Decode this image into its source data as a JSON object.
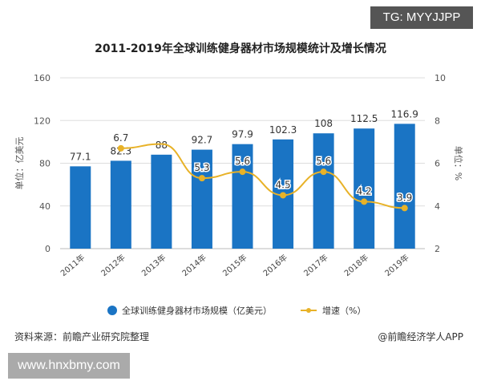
{
  "tag": "TG: MYYJJPP",
  "watermark": "www.hnxbmy.com",
  "source": "资料来源：前瞻产业研究院整理",
  "brand": "@前瞻经济学人APP",
  "chart_data": {
    "type": "bar+line",
    "title": "2011-2019年全球训练健身器材市场规模统计及增长情况",
    "categories": [
      "2011年",
      "2012年",
      "2013年",
      "2014年",
      "2015年",
      "2016年",
      "2017年",
      "2018年",
      "2019年"
    ],
    "series": [
      {
        "name": "全球训练健身器材市场规模（亿美元）",
        "type": "bar",
        "axis": "left",
        "color": "#1a74c4",
        "values": [
          77.1,
          82.3,
          88,
          92.7,
          97.9,
          102.3,
          108,
          112.5,
          116.9
        ],
        "labels": [
          "77.1",
          "82.3",
          "88",
          "92.7",
          "97.9",
          "102.3",
          "108",
          "112.5",
          "116.9"
        ]
      },
      {
        "name": "增速（%）",
        "type": "line",
        "axis": "right",
        "color": "#e8b228",
        "values": [
          null,
          6.7,
          6.9,
          5.3,
          5.6,
          4.5,
          5.6,
          4.2,
          3.9
        ],
        "labels": [
          "",
          "6.7",
          "",
          "5.3",
          "5.6",
          "4.5",
          "5.6",
          "4.2",
          "3.9"
        ]
      }
    ],
    "ylabel": "单位：亿美元",
    "y2label": "单位：%",
    "ylim": [
      0,
      160
    ],
    "yticks": [
      0,
      40,
      80,
      120,
      160
    ],
    "y2lim": [
      2,
      10
    ],
    "y2ticks": [
      2,
      4,
      6,
      8,
      10
    ],
    "grid": true,
    "legend": "bottom"
  }
}
